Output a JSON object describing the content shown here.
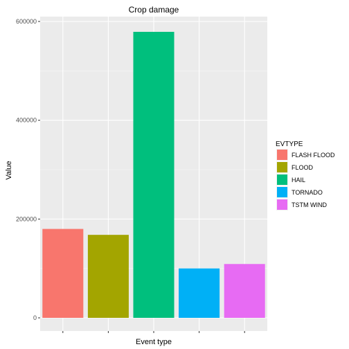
{
  "chart_data": {
    "type": "bar",
    "title": "Crop damage",
    "xlabel": "Event type",
    "ylabel": "Value",
    "categories": [
      "FLASH FLOOD",
      "FLOOD",
      "HAIL",
      "TORNADO",
      "TSTM WIND"
    ],
    "values": [
      180000,
      168000,
      579000,
      100000,
      109000
    ],
    "colors": [
      "#F8766D",
      "#A3A500",
      "#00BF7D",
      "#00B0F6",
      "#E76BF3"
    ],
    "ylim": [
      0,
      610000
    ],
    "yticks": [
      0,
      200000,
      400000,
      600000
    ],
    "ytick_labels": [
      "0",
      "200000",
      "400000",
      "600000"
    ],
    "x_tick_labels_shown": false,
    "grid": true,
    "legend": {
      "title": "EVTYPE",
      "placement": "right",
      "entries": [
        "FLASH FLOOD",
        "FLOOD",
        "HAIL",
        "TORNADO",
        "TSTM WIND"
      ]
    }
  }
}
